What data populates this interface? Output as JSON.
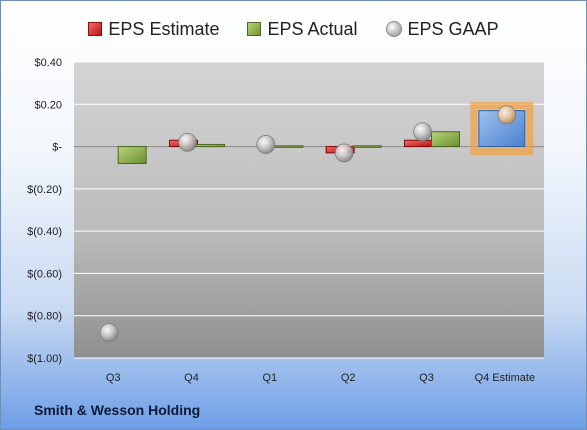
{
  "chart_data": {
    "type": "bar",
    "categories": [
      "Q3",
      "Q4",
      "Q1",
      "Q2",
      "Q3",
      "Q4 Estimate"
    ],
    "series": [
      {
        "name": "EPS Estimate",
        "values": [
          null,
          0.03,
          null,
          -0.03,
          0.03,
          null
        ],
        "color": "#c01414"
      },
      {
        "name": "EPS Actual",
        "values": [
          -0.08,
          0.01,
          0.0,
          0.0,
          0.07,
          null
        ],
        "color": "#7a9b3a"
      },
      {
        "name": "EPS Estimate (upcoming)",
        "values": [
          null,
          null,
          null,
          null,
          null,
          0.17
        ],
        "color": "#5b8fd6"
      }
    ],
    "gaap": {
      "name": "EPS GAAP",
      "values": [
        -0.88,
        0.02,
        0.01,
        -0.03,
        0.07,
        0.15
      ]
    },
    "ylim": [
      -1.0,
      0.4
    ],
    "yticks": [
      {
        "value": 0.4,
        "label": "$0.40"
      },
      {
        "value": 0.2,
        "label": "$0.20"
      },
      {
        "value": 0.0,
        "label": "$-"
      },
      {
        "value": -0.2,
        "label": "$(0.20)"
      },
      {
        "value": -0.4,
        "label": "$(0.40)"
      },
      {
        "value": -0.6,
        "label": "$(0.60)"
      },
      {
        "value": -0.8,
        "label": "$(0.80)"
      },
      {
        "value": -1.0,
        "label": "$(1.00)"
      }
    ],
    "grid": true,
    "legend_position": "top"
  },
  "legend": [
    {
      "label": "EPS Estimate",
      "icon": "red-cube"
    },
    {
      "label": "EPS Actual",
      "icon": "green-cube"
    },
    {
      "label": "EPS GAAP",
      "icon": "gray-sphere"
    }
  ],
  "company": "Smith & Wesson Holding"
}
